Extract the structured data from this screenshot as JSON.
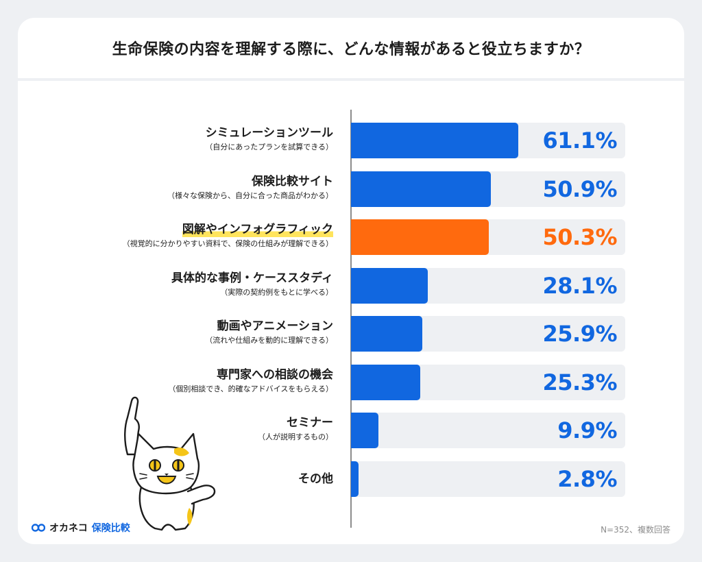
{
  "title": "生命保険の内容を理解する際に、どんな情報があると役立ちますか？",
  "chart_data": {
    "type": "bar",
    "orientation": "horizontal",
    "title": "生命保険の内容を理解する際に、どんな情報があると役立ちますか？",
    "categories": [
      {
        "label": "シミュレーションツール",
        "sub": "（自分にあったプランを試算できる）"
      },
      {
        "label": "保険比較サイト",
        "sub": "（様々な保険から、自分に合った商品がわかる）"
      },
      {
        "label": "図解やインフォグラフィック",
        "sub": "（視覚的に分かりやすい資料で、保険の仕組みが理解できる）"
      },
      {
        "label": "具体的な事例・ケーススタディ",
        "sub": "（実際の契約例をもとに学べる）"
      },
      {
        "label": "動画やアニメーション",
        "sub": "（流れや仕組みを動的に理解できる）"
      },
      {
        "label": "専門家への相談の機会",
        "sub": "（個別相談でき、的確なアドバイスをもらえる）"
      },
      {
        "label": "セミナー",
        "sub": "（人が説明するもの）"
      },
      {
        "label": "その他",
        "sub": ""
      }
    ],
    "values": [
      61.1,
      50.9,
      50.3,
      28.1,
      25.9,
      25.3,
      9.9,
      2.8
    ],
    "value_labels": [
      "61.1%",
      "50.9%",
      "50.3%",
      "28.1%",
      "25.9%",
      "25.3%",
      "9.9%",
      "2.8%"
    ],
    "highlight_index": 2,
    "xlim": [
      0,
      100
    ],
    "unit": "%",
    "colors": {
      "bar": "#1167e0",
      "highlight": "#ff6a0e",
      "track": "#eef0f3",
      "highlight_label": "#ffe45c"
    }
  },
  "footer": {
    "logo_text": "オカネコ",
    "logo_text2": "保険比較",
    "note": "N=352、複数回答"
  }
}
